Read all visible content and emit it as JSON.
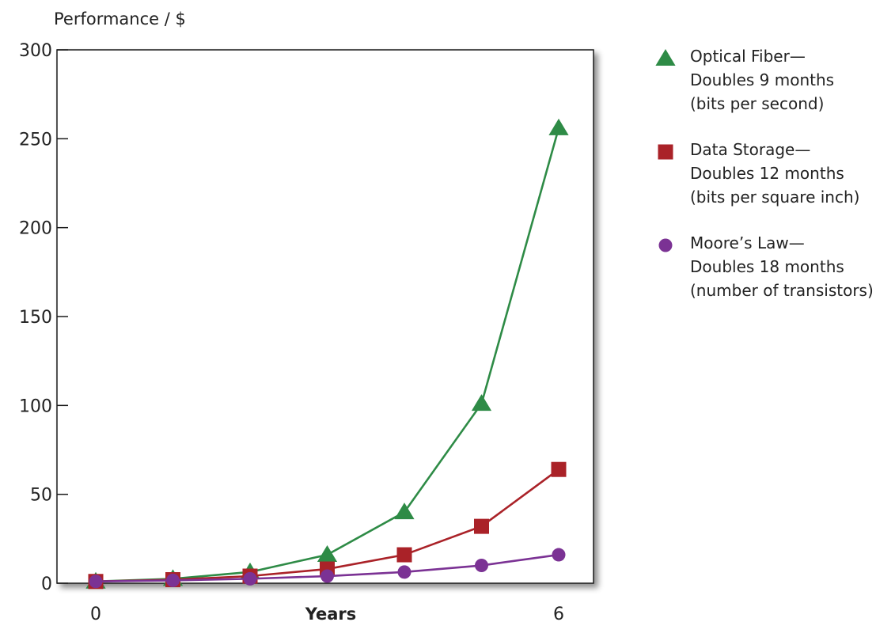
{
  "chart_data": {
    "type": "line",
    "ylabel": "Performance / $",
    "xlabel": "Years",
    "x": [
      0,
      1,
      2,
      3,
      4,
      5,
      6
    ],
    "x_tick_labels": [
      "0",
      "6"
    ],
    "ylim": [
      0,
      300
    ],
    "y_ticks": [
      0,
      50,
      100,
      150,
      200,
      250,
      300
    ],
    "grid": false,
    "legend_position": "right",
    "series": [
      {
        "name": "Optical Fiber— Doubles 9 months (bits per second)",
        "legend_lines": [
          "Optical Fiber—",
          "Doubles 9 months",
          "(bits per second)"
        ],
        "marker": "triangle",
        "color": "#2e8b46",
        "values": [
          1,
          2.5,
          6.3,
          16,
          40,
          101,
          256
        ]
      },
      {
        "name": "Data Storage— Doubles 12 months (bits per square inch)",
        "legend_lines": [
          "Data Storage—",
          "Doubles 12 months",
          "(bits per square inch)"
        ],
        "marker": "square",
        "color": "#aa2228",
        "values": [
          1,
          2,
          4,
          8,
          16,
          32,
          64
        ]
      },
      {
        "name": "Moore's Law— Doubles 18 months (number of transistors)",
        "legend_lines": [
          "Moore’s Law—",
          "Doubles 18 months",
          "(number of transistors)"
        ],
        "marker": "circle",
        "color": "#7b3294",
        "values": [
          1,
          1.6,
          2.5,
          4,
          6.3,
          10,
          16
        ]
      }
    ]
  }
}
